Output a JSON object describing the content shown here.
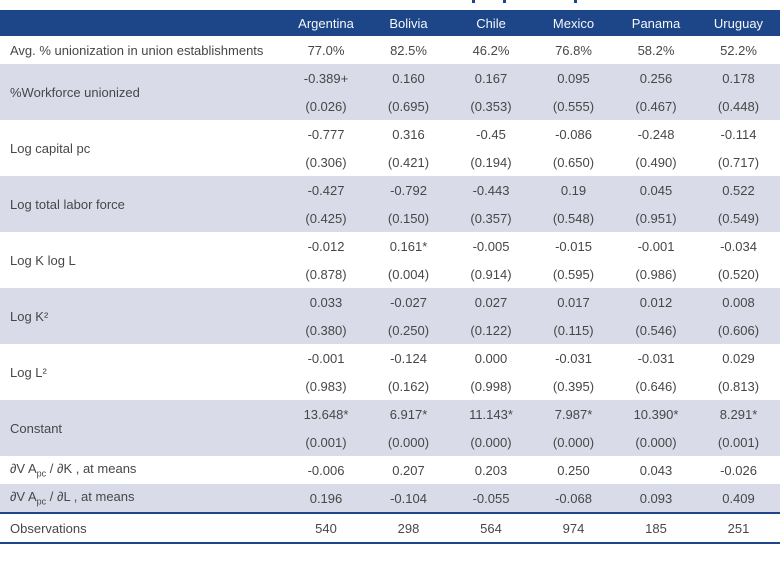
{
  "colors": {
    "header_bg": "#1c4687",
    "band_bg": "#d9dbe8",
    "text": "#474747",
    "separator_line": "#1c4687"
  },
  "table": {
    "columns": [
      "Argentina",
      "Bolivia",
      "Chile",
      "Mexico",
      "Panama",
      "Uruguay"
    ],
    "rows": [
      {
        "label": "Avg. % unionization in union establishments",
        "band": false,
        "values": [
          "77.0%",
          "82.5%",
          "46.2%",
          "76.8%",
          "58.2%",
          "52.2%"
        ]
      },
      {
        "label": "%Workforce unionized",
        "band": true,
        "values": [
          "-0.389+",
          "0.160",
          "0.167",
          "0.095",
          "0.256",
          "0.178"
        ],
        "pvalues": [
          "(0.026)",
          "(0.695)",
          "(0.353)",
          "(0.555)",
          "(0.467)",
          "(0.448)"
        ]
      },
      {
        "label": "Log capital pc",
        "band": false,
        "values": [
          "-0.777",
          "0.316",
          "-0.45",
          "-0.086",
          "-0.248",
          "-0.114"
        ],
        "pvalues": [
          "(0.306)",
          "(0.421)",
          "(0.194)",
          "(0.650)",
          "(0.490)",
          "(0.717)"
        ]
      },
      {
        "label": "Log total labor force",
        "band": true,
        "values": [
          "-0.427",
          "-0.792",
          "-0.443",
          "0.19",
          "0.045",
          "0.522"
        ],
        "pvalues": [
          "(0.425)",
          "(0.150)",
          "(0.357)",
          "(0.548)",
          "(0.951)",
          "(0.549)"
        ]
      },
      {
        "label": "Log K log L",
        "band": false,
        "values": [
          "-0.012",
          "0.161*",
          "-0.005",
          "-0.015",
          "-0.001",
          "-0.034"
        ],
        "pvalues": [
          "(0.878)",
          "(0.004)",
          "(0.914)",
          "(0.595)",
          "(0.986)",
          "(0.520)"
        ]
      },
      {
        "label": "Log K²",
        "band": true,
        "values": [
          "0.033",
          "-0.027",
          "0.027",
          "0.017",
          "0.012",
          "0.008"
        ],
        "pvalues": [
          "(0.380)",
          "(0.250)",
          "(0.122)",
          "(0.115)",
          "(0.546)",
          "(0.606)"
        ]
      },
      {
        "label": "Log L²",
        "band": false,
        "values": [
          "-0.001",
          "-0.124",
          "0.000",
          "-0.031",
          "-0.031",
          "0.029"
        ],
        "pvalues": [
          "(0.983)",
          "(0.162)",
          "(0.998)",
          "(0.395)",
          "(0.646)",
          "(0.813)"
        ]
      },
      {
        "label": "Constant",
        "band": true,
        "values": [
          "13.648*",
          "6.917*",
          "11.143*",
          "7.987*",
          "10.390*",
          "8.291*"
        ],
        "pvalues": [
          "(0.001)",
          "(0.000)",
          "(0.000)",
          "(0.000)",
          "(0.000)",
          "(0.001)"
        ]
      },
      {
        "label": "∂V A~pc~ / ∂K , at means",
        "band": false,
        "values": [
          "-0.006",
          "0.207",
          "0.203",
          "0.250",
          "0.043",
          "-0.026"
        ]
      },
      {
        "label": "∂V A~pc~ / ∂L , at means",
        "band": true,
        "separator_below": true,
        "values": [
          "0.196",
          "-0.104",
          "-0.055",
          "-0.068",
          "0.093",
          "0.409"
        ]
      },
      {
        "label": "Observations",
        "band": false,
        "table_bottom": true,
        "values": [
          "540",
          "298",
          "564",
          "974",
          "185",
          "251"
        ]
      }
    ]
  }
}
